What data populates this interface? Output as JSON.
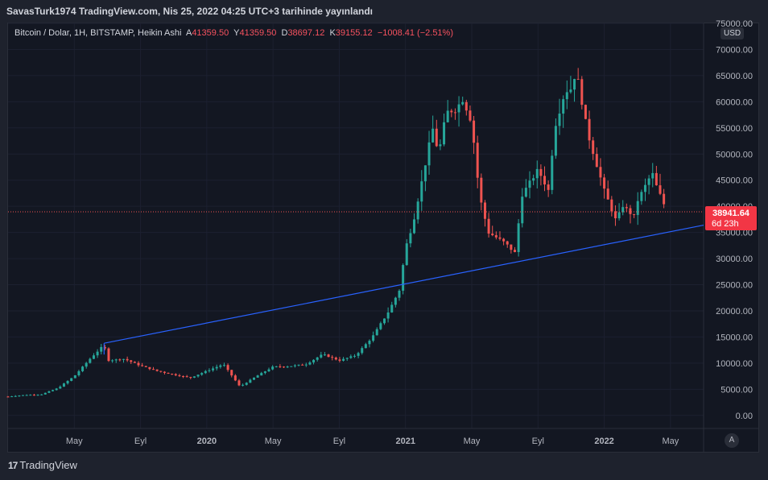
{
  "header": {
    "publish_text": "SavasTurk1974 TradingView.com, Nis 25, 2022 04:25 UTC+3 tarihinde yayınlandı"
  },
  "legend": {
    "symbol": "Bitcoin / Dolar, 1H, BITSTAMP, Heikin Ashi",
    "a_label": "A",
    "a_value": "41359.50",
    "y_label": "Y",
    "y_value": "41359.50",
    "d_label": "D",
    "d_value": "38697.12",
    "k_label": "K",
    "k_value": "39155.12",
    "change": "−1008.41 (−2.51%)"
  },
  "price_axis": {
    "currency": "USD"
  },
  "last_price": {
    "price": "38941.64",
    "countdown": "6d 23h"
  },
  "footer": {
    "brand": "TradingView",
    "logo_glyph": "17"
  },
  "auto_button": "A",
  "colors": {
    "up": "#26a69a",
    "down": "#ef5350",
    "trendline": "#2962ff",
    "background": "#131722"
  },
  "chart_data": {
    "type": "candlestick",
    "ylim": [
      -2500,
      75000
    ],
    "y_ticks": [
      "75000.00",
      "70000.00",
      "65000.00",
      "60000.00",
      "55000.00",
      "50000.00",
      "45000.00",
      "40000.00",
      "35000.00",
      "30000.00",
      "25000.00",
      "20000.00",
      "15000.00",
      "10000.00",
      "5000.00",
      "0.00"
    ],
    "y_tick_values": [
      75000,
      70000,
      65000,
      60000,
      55000,
      50000,
      45000,
      40000,
      35000,
      30000,
      25000,
      20000,
      15000,
      10000,
      5000,
      0
    ],
    "x_ticks": [
      "May",
      "Eyl",
      "2020",
      "May",
      "Eyl",
      "2021",
      "May",
      "Eyl",
      "2022",
      "May"
    ],
    "x_tick_dates": [
      "2019-05",
      "2019-09",
      "2020-01",
      "2020-05",
      "2020-09",
      "2021-01",
      "2021-05",
      "2021-09",
      "2022-01",
      "2022-05"
    ],
    "x_range": [
      "2019-01",
      "2022-07"
    ],
    "price_path": [
      [
        "2019-01",
        3600
      ],
      [
        "2019-02",
        3900
      ],
      [
        "2019-03",
        4000
      ],
      [
        "2019-04",
        5200
      ],
      [
        "2019-05",
        7500
      ],
      [
        "2019-06",
        11000
      ],
      [
        "2019-06-25",
        13500
      ],
      [
        "2019-07",
        10500
      ],
      [
        "2019-08",
        10800
      ],
      [
        "2019-09",
        9500
      ],
      [
        "2019-10",
        8500
      ],
      [
        "2019-11",
        7800
      ],
      [
        "2019-12",
        7200
      ],
      [
        "2020-01",
        8500
      ],
      [
        "2020-02",
        9800
      ],
      [
        "2020-03",
        5500
      ],
      [
        "2020-04",
        7500
      ],
      [
        "2020-05",
        9300
      ],
      [
        "2020-06",
        9400
      ],
      [
        "2020-07",
        9800
      ],
      [
        "2020-08",
        11700
      ],
      [
        "2020-09",
        10500
      ],
      [
        "2020-10",
        11500
      ],
      [
        "2020-11",
        15000
      ],
      [
        "2020-12",
        20000
      ],
      [
        "2020-12-20",
        24000
      ],
      [
        "2021-01",
        32000
      ],
      [
        "2021-01-15",
        37000
      ],
      [
        "2021-02",
        45000
      ],
      [
        "2021-02-20",
        55000
      ],
      [
        "2021-03",
        50000
      ],
      [
        "2021-03-15",
        58000
      ],
      [
        "2021-04",
        58500
      ],
      [
        "2021-04-15",
        60500
      ],
      [
        "2021-05",
        56000
      ],
      [
        "2021-05-15",
        42000
      ],
      [
        "2021-06",
        35000
      ],
      [
        "2021-07",
        33000
      ],
      [
        "2021-07-20",
        31000
      ],
      [
        "2021-08",
        42000
      ],
      [
        "2021-09",
        47000
      ],
      [
        "2021-09-20",
        43000
      ],
      [
        "2021-10",
        55000
      ],
      [
        "2021-10-20",
        62000
      ],
      [
        "2021-11",
        62500
      ],
      [
        "2021-11-10",
        66000
      ],
      [
        "2021-12",
        54000
      ],
      [
        "2021-12-20",
        47000
      ],
      [
        "2022-01",
        43000
      ],
      [
        "2022-01-25",
        36500
      ],
      [
        "2022-02",
        40500
      ],
      [
        "2022-02-25",
        38000
      ],
      [
        "2022-03",
        41000
      ],
      [
        "2022-03-28",
        46500
      ],
      [
        "2022-04",
        45000
      ],
      [
        "2022-04-24",
        39155
      ]
    ],
    "trendline": {
      "from": [
        "2019-06-25",
        13800
      ],
      "to": [
        "2022-07",
        36400
      ]
    },
    "last_price_line": 38941.64
  }
}
